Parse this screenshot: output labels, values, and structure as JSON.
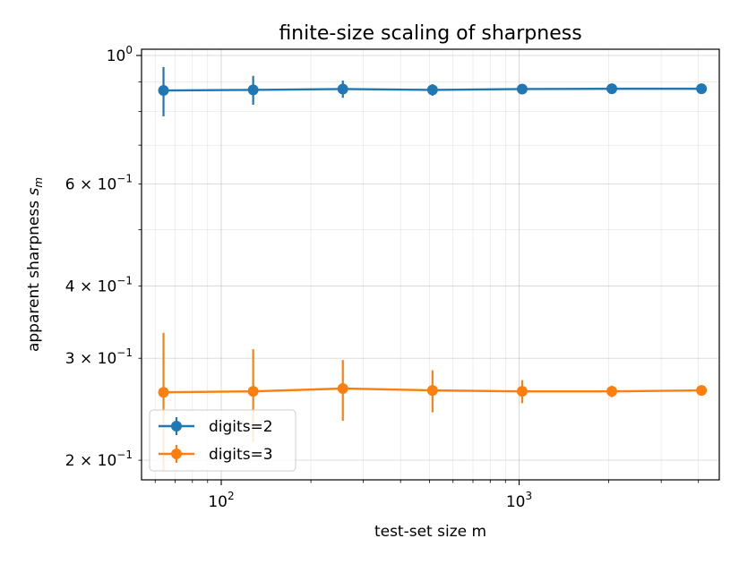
{
  "chart_data": {
    "type": "line",
    "title": "finite-size scaling of sharpness",
    "xlabel": "test-set size m",
    "ylabel_main": "apparent sharpness ",
    "ylabel_symbol": "s",
    "ylabel_sub": "m",
    "xscale": "log",
    "yscale": "log",
    "xlim": [
      54,
      4700
    ],
    "ylim": [
      0.185,
      1.025
    ],
    "grid": true,
    "legend_position": "lower-left",
    "x_major_ticks": [
      {
        "value": 100,
        "base": "10",
        "exp": "2"
      },
      {
        "value": 1000,
        "base": "10",
        "exp": "3"
      }
    ],
    "y_labeled_ticks": [
      {
        "value": 1.0,
        "base": "10",
        "exp": "0",
        "mantissa": ""
      },
      {
        "value": 0.6,
        "base": "10",
        "exp": "−1",
        "mantissa": "6 × "
      },
      {
        "value": 0.4,
        "base": "10",
        "exp": "−1",
        "mantissa": "4 × "
      },
      {
        "value": 0.3,
        "base": "10",
        "exp": "−1",
        "mantissa": "3 × "
      },
      {
        "value": 0.2,
        "base": "10",
        "exp": "−1",
        "mantissa": "2 × "
      }
    ],
    "x": [
      64,
      128,
      256,
      512,
      1024,
      2048,
      4096
    ],
    "series": [
      {
        "name": "digits=2",
        "color": "#1f77b4",
        "values": [
          0.87,
          0.872,
          0.875,
          0.872,
          0.875,
          0.876,
          0.876
        ],
        "errors": [
          0.085,
          0.05,
          0.03,
          0.02,
          0.01,
          0.007,
          0.005
        ]
      },
      {
        "name": "digits=3",
        "color": "#ff7f0e",
        "values": [
          0.262,
          0.263,
          0.266,
          0.264,
          0.263,
          0.263,
          0.264
        ],
        "errors": [
          0.07,
          0.048,
          0.032,
          0.022,
          0.012,
          0.006,
          0.004
        ]
      }
    ]
  }
}
